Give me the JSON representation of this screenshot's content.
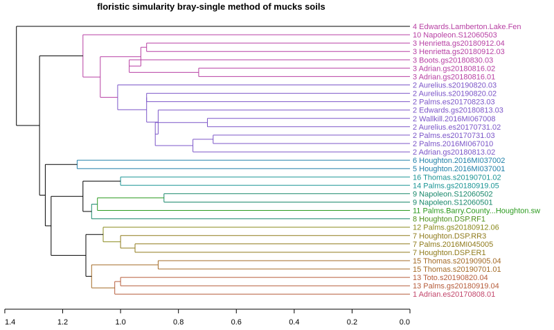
{
  "chart_data": {
    "type": "dendrogram",
    "title": "floristic simularity bray-single  method of mucks soils",
    "xlim": [
      1.4,
      0.0
    ],
    "x_ticks": [
      1.4,
      1.2,
      1.0,
      0.8,
      0.6,
      0.4,
      0.2,
      0.0
    ],
    "leaves": [
      {
        "label": "4 Edwards.Lamberton.Lake.Fen",
        "color": "#b73fa3"
      },
      {
        "label": "10 Napoleon.S12060503",
        "color": "#b73fa3"
      },
      {
        "label": "3 Henrietta.gs20180912.04",
        "color": "#b73fa3"
      },
      {
        "label": "3 Henrietta.gs20180912.03",
        "color": "#b73fa3"
      },
      {
        "label": "3 Boots.gs20180830.03",
        "color": "#b73fa3"
      },
      {
        "label": "3 Adrian.gs20180816.02",
        "color": "#b73fa3"
      },
      {
        "label": "3 Adrian.gs20180816.01",
        "color": "#b73fa3"
      },
      {
        "label": "2 Aurelius.s20190820.03",
        "color": "#7b55c8"
      },
      {
        "label": "2 Aurelius.s20190820.02",
        "color": "#7b55c8"
      },
      {
        "label": "2 Palms.es20170823.03",
        "color": "#7b55c8"
      },
      {
        "label": "2 Edwards.gs20180813.03",
        "color": "#7b55c8"
      },
      {
        "label": "2 Wallkill.2016MI067008",
        "color": "#7b55c8"
      },
      {
        "label": "2 Aurelius.es20170731.02",
        "color": "#7b55c8"
      },
      {
        "label": "2 Palms.es20170731.03",
        "color": "#7b55c8"
      },
      {
        "label": "2 Palms.2016MI067010",
        "color": "#7b55c8"
      },
      {
        "label": "2 Adrian.gs20180813.02",
        "color": "#7b55c8"
      },
      {
        "label": "6 Houghton.2016MI037002",
        "color": "#1f7fa8"
      },
      {
        "label": "5 Houghton.2016MI037001",
        "color": "#1f7fa8"
      },
      {
        "label": "16 Thomas.s20190701.02",
        "color": "#1c9595"
      },
      {
        "label": "14 Palms.gs20180919.05",
        "color": "#1c9595"
      },
      {
        "label": "9 Napoleon.S12060502",
        "color": "#19886b"
      },
      {
        "label": "9 Napoleon.S12060501",
        "color": "#19886b"
      },
      {
        "label": "11 Palms.Barry.County...Houghton.sw",
        "color": "#2b9a1e"
      },
      {
        "label": "8 Houghton.DSP.RF1",
        "color": "#4c8f1a"
      },
      {
        "label": "12 Palms.gs20180912.06",
        "color": "#8a8a1c"
      },
      {
        "label": "7 Houghton.DSP.RR3",
        "color": "#8f7a1a"
      },
      {
        "label": "7 Palms.2016MI045005",
        "color": "#8f7a1a"
      },
      {
        "label": "7 Houghton.DSP.ER1",
        "color": "#8f7a1a"
      },
      {
        "label": "15 Thomas.s20190905.04",
        "color": "#a36a25"
      },
      {
        "label": "15 Thomas.s20190701.01",
        "color": "#a36a25"
      },
      {
        "label": "13 Toto.s20190820.04",
        "color": "#b65c3a"
      },
      {
        "label": "13 Palms.gs20180919.04",
        "color": "#b65c3a"
      },
      {
        "label": "1 Adrian.es20170808.01",
        "color": "#c2466b"
      }
    ],
    "merges": [
      {
        "a": "L2",
        "b": "L3",
        "height": 0.91,
        "color": "#b73fa3"
      },
      {
        "a": "L5",
        "b": "L6",
        "height": 0.73,
        "color": "#b73fa3"
      },
      {
        "a": "L4",
        "b": "N1",
        "height": 0.97,
        "color": "#b73fa3"
      },
      {
        "a": "N0",
        "b": "N2",
        "height": 0.93,
        "color": "#b73fa3"
      },
      {
        "a": "L8",
        "b": "L9",
        "height": 0.91,
        "color": "#7b55c8"
      },
      {
        "a": "L11",
        "b": "L12",
        "height": 0.7,
        "color": "#7b55c8"
      },
      {
        "a": "L13",
        "b": "L14",
        "height": 0.68,
        "color": "#7b55c8"
      },
      {
        "a": "N6",
        "b": "L15",
        "height": 0.75,
        "color": "#7b55c8"
      },
      {
        "a": "N5",
        "b": "N7",
        "height": 0.88,
        "color": "#7b55c8"
      },
      {
        "a": "L10",
        "b": "N8",
        "height": 0.87,
        "color": "#7b55c8"
      },
      {
        "a": "N4",
        "b": "N9",
        "height": 0.91,
        "color": "#7b55c8"
      },
      {
        "a": "L7",
        "b": "N10",
        "height": 1.01,
        "color": "#7b55c8"
      },
      {
        "a": "N3",
        "b": "N11",
        "height": 1.07,
        "color": "#b73fa3"
      },
      {
        "a": "L1",
        "b": "N12",
        "height": 1.13,
        "color": "#b73fa3"
      },
      {
        "a": "L16",
        "b": "L17",
        "height": 1.15,
        "color": "#1f7fa8"
      },
      {
        "a": "L18",
        "b": "L19",
        "height": 1.0,
        "color": "#1c9595"
      },
      {
        "a": "L20",
        "b": "L21",
        "height": 0.85,
        "color": "#19886b"
      },
      {
        "a": "N16",
        "b": "L22",
        "height": 1.08,
        "color": "#2b9a1e"
      },
      {
        "a": "N17",
        "b": "L23",
        "height": 1.1,
        "color": "#19886b"
      },
      {
        "a": "N15",
        "b": "N18",
        "height": 1.13,
        "color": "#000000"
      },
      {
        "a": "L26",
        "b": "L27",
        "height": 0.95,
        "color": "#8f7a1a"
      },
      {
        "a": "L25",
        "b": "N20",
        "height": 1.0,
        "color": "#8f7a1a"
      },
      {
        "a": "L24",
        "b": "N21",
        "height": 1.06,
        "color": "#8a8a1c"
      },
      {
        "a": "L28",
        "b": "L29",
        "height": 0.87,
        "color": "#a36a25"
      },
      {
        "a": "L30",
        "b": "L31",
        "height": 1.0,
        "color": "#b65c3a"
      },
      {
        "a": "N24",
        "b": "L32",
        "height": 1.02,
        "color": "#b65c3a"
      },
      {
        "a": "N23",
        "b": "N25",
        "height": 1.1,
        "color": "#a36a25"
      },
      {
        "a": "N22",
        "b": "N26",
        "height": 1.12,
        "color": "#000000"
      },
      {
        "a": "N19",
        "b": "N27",
        "height": 1.24,
        "color": "#000000"
      },
      {
        "a": "N14",
        "b": "N28",
        "height": 1.26,
        "color": "#000000"
      },
      {
        "a": "N13",
        "b": "N29",
        "height": 1.28,
        "color": "#000000"
      },
      {
        "a": "L0",
        "b": "N30",
        "height": 1.36,
        "color": "#000000"
      }
    ]
  }
}
